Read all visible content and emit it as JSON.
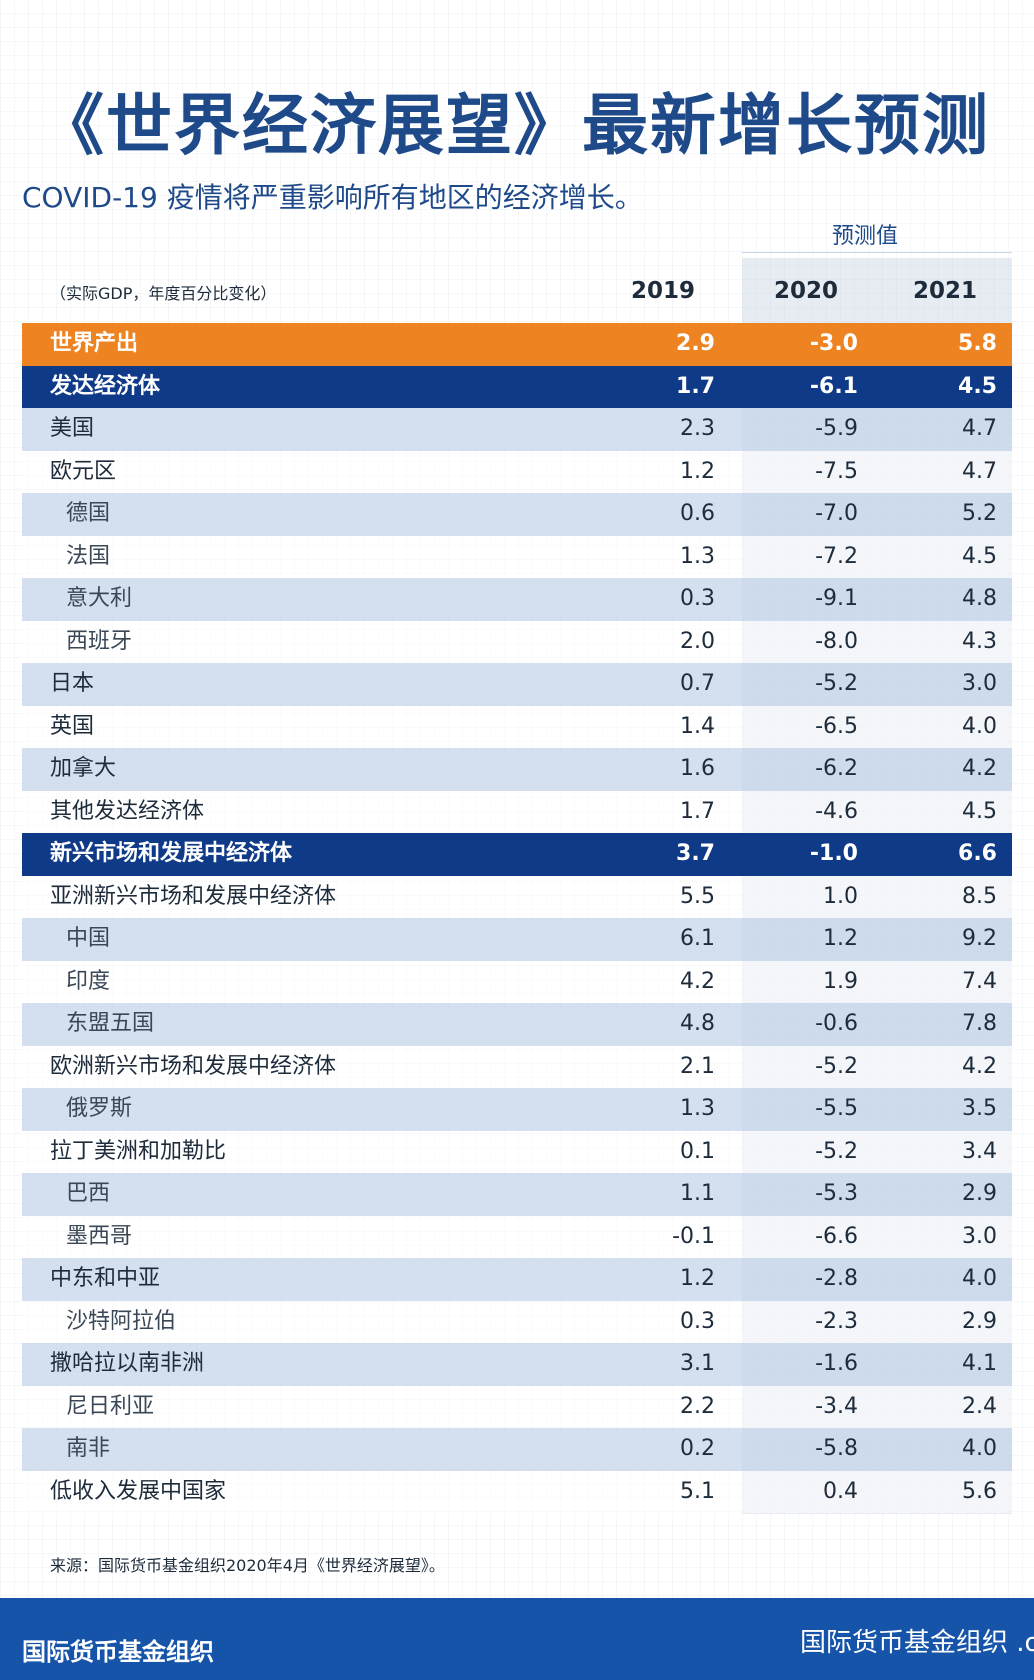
{
  "title": "《世界经济展望》最新增长预测",
  "subtitle": "COVID-19 疫情将严重影响所有地区的经济增长。",
  "forecast_label": "预测值",
  "units_label": "（实际GDP，年度百分比变化）",
  "years": [
    "2019",
    "2020",
    "2021"
  ],
  "source": "来源：国际货币基金组织2020年4月《世界经济展望》。",
  "footer": {
    "left": "国际货币基金组织",
    "right": "国际货币基金组织 .org"
  },
  "colors": {
    "title_blue": "#1f4a8a",
    "world_orange": "#ee8321",
    "group_navy": "#0f3a87",
    "row_shade": "#c6d5e9",
    "footer_blue": "#1554a8"
  },
  "chart_data": {
    "type": "table",
    "title": "《世界经济展望》最新增长预测",
    "subtitle": "COVID-19 疫情将严重影响所有地区的经济增长。",
    "columns": [
      "2019",
      "2020",
      "2021"
    ],
    "forecast_columns": [
      "2020",
      "2021"
    ],
    "rows": [
      {
        "label": "世界产出",
        "kind": "world",
        "values": [
          "2.9",
          "-3.0",
          "5.8"
        ]
      },
      {
        "label": "发达经济体",
        "kind": "group",
        "values": [
          "1.7",
          "-6.1",
          "4.5"
        ]
      },
      {
        "label": "美国",
        "kind": "main",
        "values": [
          "2.3",
          "-5.9",
          "4.7"
        ]
      },
      {
        "label": "欧元区",
        "kind": "main",
        "values": [
          "1.2",
          "-7.5",
          "4.7"
        ]
      },
      {
        "label": "德国",
        "kind": "sub",
        "values": [
          "0.6",
          "-7.0",
          "5.2"
        ]
      },
      {
        "label": "法国",
        "kind": "sub",
        "values": [
          "1.3",
          "-7.2",
          "4.5"
        ]
      },
      {
        "label": "意大利",
        "kind": "sub",
        "values": [
          "0.3",
          "-9.1",
          "4.8"
        ]
      },
      {
        "label": "西班牙",
        "kind": "sub",
        "values": [
          "2.0",
          "-8.0",
          "4.3"
        ]
      },
      {
        "label": "日本",
        "kind": "main",
        "values": [
          "0.7",
          "-5.2",
          "3.0"
        ]
      },
      {
        "label": "英国",
        "kind": "main",
        "values": [
          "1.4",
          "-6.5",
          "4.0"
        ]
      },
      {
        "label": "加拿大",
        "kind": "main",
        "values": [
          "1.6",
          "-6.2",
          "4.2"
        ]
      },
      {
        "label": "其他发达经济体",
        "kind": "main",
        "values": [
          "1.7",
          "-4.6",
          "4.5"
        ]
      },
      {
        "label": "新兴市场和发展中经济体",
        "kind": "group",
        "values": [
          "3.7",
          "-1.0",
          "6.6"
        ]
      },
      {
        "label": "亚洲新兴市场和发展中经济体",
        "kind": "main",
        "values": [
          "5.5",
          "1.0",
          "8.5"
        ]
      },
      {
        "label": "中国",
        "kind": "sub",
        "values": [
          "6.1",
          "1.2",
          "9.2"
        ]
      },
      {
        "label": "印度",
        "kind": "sub",
        "values": [
          "4.2",
          "1.9",
          "7.4"
        ]
      },
      {
        "label": "东盟五国",
        "kind": "sub",
        "values": [
          "4.8",
          "-0.6",
          "7.8"
        ]
      },
      {
        "label": "欧洲新兴市场和发展中经济体",
        "kind": "main",
        "values": [
          "2.1",
          "-5.2",
          "4.2"
        ]
      },
      {
        "label": "俄罗斯",
        "kind": "sub",
        "values": [
          "1.3",
          "-5.5",
          "3.5"
        ]
      },
      {
        "label": "拉丁美洲和加勒比",
        "kind": "main",
        "values": [
          "0.1",
          "-5.2",
          "3.4"
        ]
      },
      {
        "label": "巴西",
        "kind": "sub",
        "values": [
          "1.1",
          "-5.3",
          "2.9"
        ]
      },
      {
        "label": "墨西哥",
        "kind": "sub",
        "values": [
          "-0.1",
          "-6.6",
          "3.0"
        ]
      },
      {
        "label": "中东和中亚",
        "kind": "main",
        "values": [
          "1.2",
          "-2.8",
          "4.0"
        ]
      },
      {
        "label": "沙特阿拉伯",
        "kind": "sub",
        "values": [
          "0.3",
          "-2.3",
          "2.9"
        ]
      },
      {
        "label": "撒哈拉以南非洲",
        "kind": "main",
        "values": [
          "3.1",
          "-1.6",
          "4.1"
        ]
      },
      {
        "label": "尼日利亚",
        "kind": "sub",
        "values": [
          "2.2",
          "-3.4",
          "2.4"
        ]
      },
      {
        "label": "南非",
        "kind": "sub",
        "values": [
          "0.2",
          "-5.8",
          "4.0"
        ]
      },
      {
        "label": "低收入发展中国家",
        "kind": "main",
        "values": [
          "5.1",
          "0.4",
          "5.6"
        ]
      }
    ]
  }
}
